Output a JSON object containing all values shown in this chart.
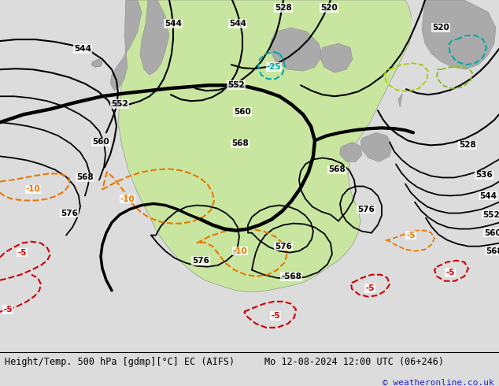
{
  "title_left": "Height/Temp. 500 hPa [gdmp][°C] EC (AIFS)",
  "title_right": "Mo 12-08-2024 12:00 UTC (06+246)",
  "copyright": "© weatheronline.co.uk",
  "bg_color": "#dcdcdc",
  "land_green": "#c8e6a0",
  "land_gray": "#aaaaaa",
  "ocean_color": "#dcdcdc",
  "fig_width": 6.34,
  "fig_height": 4.9,
  "dpi": 100,
  "footer_fontsize": 8.5,
  "copyright_fontsize": 8
}
